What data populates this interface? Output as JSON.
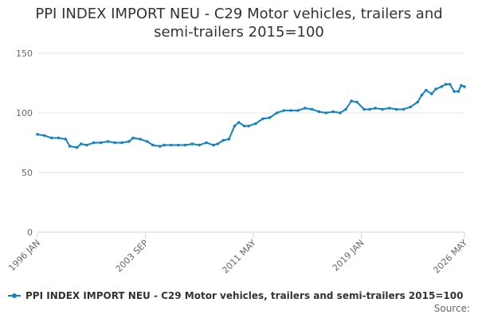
{
  "chart_data": {
    "type": "line",
    "title": "PPI INDEX IMPORT NEU - C29 Motor vehicles, trailers and semi-trailers 2015=100",
    "x": [
      1996.0,
      1996.5,
      1997.0,
      1997.5,
      1998.0,
      1998.3,
      1998.8,
      1999.1,
      1999.5,
      2000.0,
      2000.5,
      2001.0,
      2001.5,
      2002.0,
      2002.5,
      2002.8,
      2003.3,
      2003.8,
      2004.2,
      2004.7,
      2005.0,
      2005.5,
      2006.0,
      2006.5,
      2007.0,
      2007.5,
      2008.0,
      2008.5,
      2008.8,
      2009.2,
      2009.6,
      2010.0,
      2010.3,
      2010.7,
      2011.0,
      2011.5,
      2012.0,
      2012.5,
      2013.0,
      2013.5,
      2014.0,
      2014.5,
      2015.0,
      2015.5,
      2016.0,
      2016.5,
      2017.0,
      2017.5,
      2017.9,
      2018.3,
      2018.7,
      2019.2,
      2019.6,
      2020.0,
      2020.5,
      2021.0,
      2021.5,
      2022.0,
      2022.5,
      2023.0,
      2023.3,
      2023.6,
      2024.0,
      2024.3,
      2024.7,
      2025.0,
      2025.3,
      2025.6,
      2025.9,
      2026.1,
      2026.33
    ],
    "series": [
      {
        "name": "PPI INDEX IMPORT NEU - C29 Motor vehicles, trailers and semi-trailers 2015=100",
        "color": "#1582be",
        "values": [
          82,
          81,
          79,
          79,
          78,
          72,
          71,
          74,
          73,
          75,
          75,
          76,
          75,
          75,
          76,
          79,
          78,
          76,
          73,
          72,
          73,
          73,
          73,
          73,
          74,
          73,
          75,
          73,
          74,
          77,
          78,
          89,
          92,
          89,
          89,
          91,
          95,
          96,
          100,
          102,
          102,
          102,
          104,
          103,
          101,
          100,
          101,
          100,
          103,
          110,
          109,
          103,
          103,
          104,
          103,
          104,
          103,
          103,
          105,
          109,
          115,
          119,
          116,
          120,
          122,
          124,
          124,
          118,
          118,
          123,
          122
        ]
      }
    ],
    "xlim": [
      1996.0,
      2026.33
    ],
    "xticks": [
      {
        "value": 1996.0,
        "label": "1996 JAN"
      },
      {
        "value": 2003.67,
        "label": "2003 SEP"
      },
      {
        "value": 2011.33,
        "label": "2011 MAY"
      },
      {
        "value": 2019.0,
        "label": "2019 JAN"
      },
      {
        "value": 2026.33,
        "label": "2026 MAY"
      }
    ],
    "ylim": [
      0,
      150
    ],
    "yticks": [
      0,
      50,
      100,
      150
    ],
    "grid": true,
    "source": "Source:"
  }
}
